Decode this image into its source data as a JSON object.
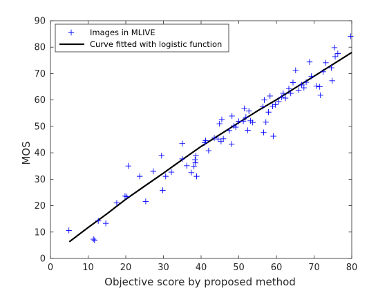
{
  "chart_data": {
    "type": "scatter",
    "title": "",
    "xlabel": "Objective score by proposed method",
    "ylabel": "MOS",
    "xlim": [
      0,
      80
    ],
    "ylim": [
      0,
      90
    ],
    "xticks": [
      0,
      10,
      20,
      30,
      40,
      50,
      60,
      70,
      80
    ],
    "yticks": [
      0,
      10,
      20,
      30,
      40,
      50,
      60,
      70,
      80,
      90
    ],
    "grid": false,
    "legend_position": "top-left",
    "series": [
      {
        "name": "Images in MLIVE",
        "type": "scatter",
        "marker": "plus",
        "color": "#0000ff",
        "points": [
          [
            4.9,
            10.6
          ],
          [
            11.4,
            7.3
          ],
          [
            11.7,
            6.9
          ],
          [
            12.7,
            14.2
          ],
          [
            14.7,
            13.3
          ],
          [
            17.6,
            21.0
          ],
          [
            19.8,
            23.6
          ],
          [
            20.3,
            23.4
          ],
          [
            20.7,
            35.0
          ],
          [
            23.7,
            31.1
          ],
          [
            25.3,
            21.6
          ],
          [
            27.3,
            33.0
          ],
          [
            29.5,
            38.9
          ],
          [
            29.8,
            25.8
          ],
          [
            30.6,
            31.1
          ],
          [
            32.1,
            32.7
          ],
          [
            35.0,
            43.5
          ],
          [
            35.0,
            37.7
          ],
          [
            36.2,
            35.1
          ],
          [
            37.4,
            32.5
          ],
          [
            38.1,
            34.9
          ],
          [
            38.4,
            37.4
          ],
          [
            38.5,
            36.2
          ],
          [
            38.6,
            38.9
          ],
          [
            38.8,
            31.1
          ],
          [
            41.0,
            43.8
          ],
          [
            41.2,
            44.6
          ],
          [
            42.0,
            40.8
          ],
          [
            43.5,
            45.6
          ],
          [
            44.5,
            45.2
          ],
          [
            44.9,
            51.0
          ],
          [
            45.3,
            44.3
          ],
          [
            45.5,
            52.6
          ],
          [
            45.9,
            45.3
          ],
          [
            47.5,
            48.4
          ],
          [
            48.1,
            43.3
          ],
          [
            48.2,
            53.9
          ],
          [
            48.7,
            50.2
          ],
          [
            49.2,
            49.7
          ],
          [
            50.0,
            51.9
          ],
          [
            51.2,
            52.0
          ],
          [
            51.5,
            56.8
          ],
          [
            51.9,
            53.5
          ],
          [
            52.4,
            48.5
          ],
          [
            52.7,
            55.8
          ],
          [
            53.1,
            52.1
          ],
          [
            53.7,
            51.5
          ],
          [
            56.4,
            57.5
          ],
          [
            56.6,
            47.7
          ],
          [
            56.8,
            60.0
          ],
          [
            57.2,
            51.6
          ],
          [
            57.9,
            55.4
          ],
          [
            58.3,
            61.5
          ],
          [
            59.0,
            57.6
          ],
          [
            59.2,
            46.3
          ],
          [
            59.7,
            58.2
          ],
          [
            60.6,
            59.4
          ],
          [
            61.4,
            61.0
          ],
          [
            61.8,
            62.5
          ],
          [
            62.4,
            60.7
          ],
          [
            63.3,
            64.3
          ],
          [
            63.8,
            62.5
          ],
          [
            64.4,
            66.6
          ],
          [
            65.1,
            71.2
          ],
          [
            65.9,
            63.7
          ],
          [
            66.7,
            65.7
          ],
          [
            67.3,
            64.6
          ],
          [
            67.9,
            66.7
          ],
          [
            68.8,
            74.4
          ],
          [
            69.3,
            69.0
          ],
          [
            70.6,
            65.3
          ],
          [
            71.5,
            65.0
          ],
          [
            71.7,
            61.8
          ],
          [
            72.4,
            70.7
          ],
          [
            73.1,
            74.1
          ],
          [
            74.6,
            72.2
          ],
          [
            74.8,
            67.3
          ],
          [
            75.4,
            79.8
          ],
          [
            75.6,
            76.4
          ],
          [
            76.3,
            77.6
          ],
          [
            79.7,
            84.1
          ]
        ]
      },
      {
        "name": "Curve fitted with logistic function",
        "type": "line",
        "color": "#000000",
        "points": [
          [
            5,
            6.3
          ],
          [
            10,
            11.7
          ],
          [
            15,
            16.9
          ],
          [
            20,
            22.4
          ],
          [
            25,
            27.4
          ],
          [
            30,
            32.3
          ],
          [
            35,
            37.4
          ],
          [
            40,
            42.4
          ],
          [
            45,
            46.9
          ],
          [
            50,
            51.4
          ],
          [
            55,
            55.9
          ],
          [
            60,
            60.1
          ],
          [
            65,
            64.6
          ],
          [
            70,
            69.0
          ],
          [
            75,
            73.5
          ],
          [
            80,
            78.0
          ]
        ]
      }
    ]
  }
}
